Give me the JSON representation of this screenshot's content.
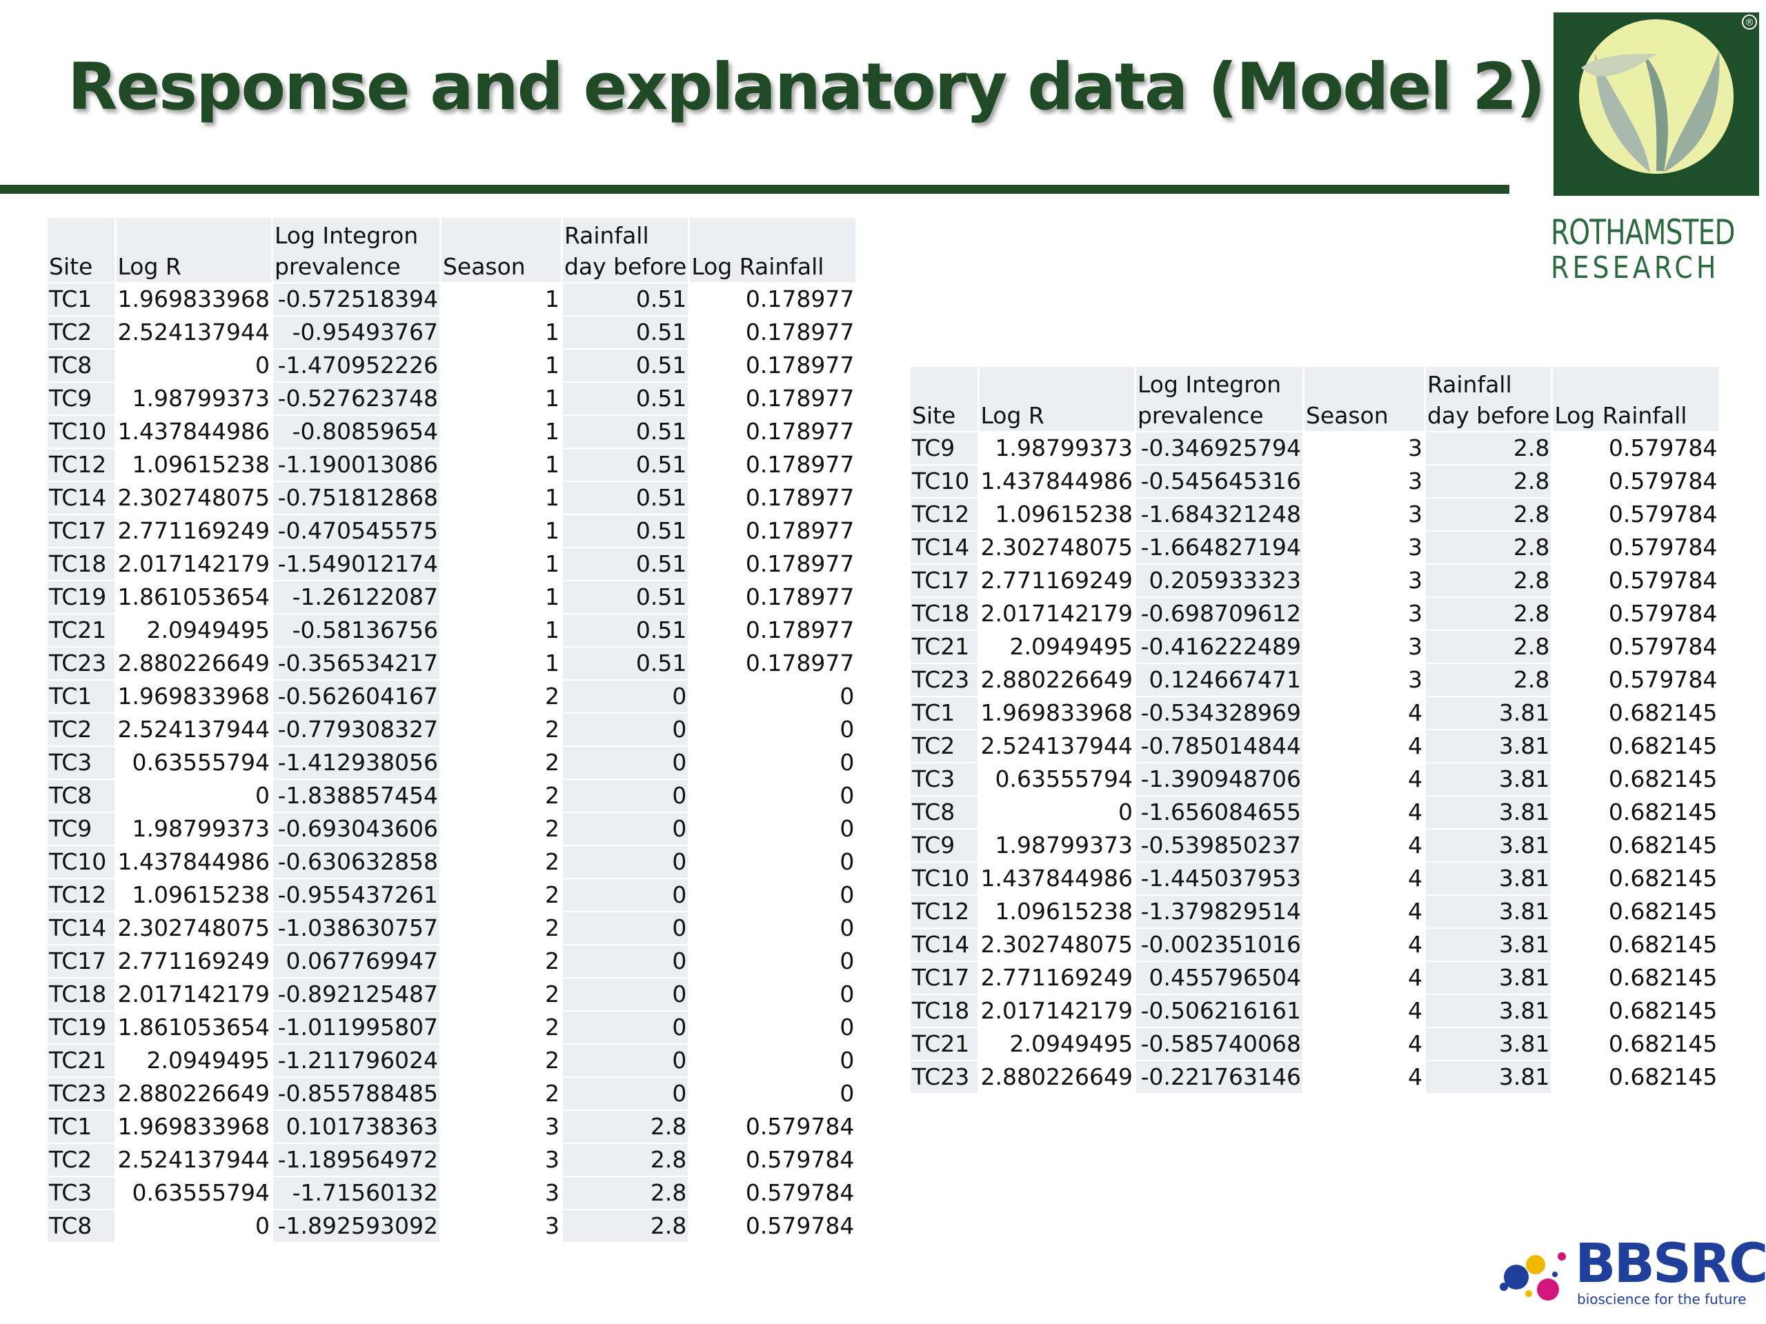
{
  "slide": {
    "title": "Response and explanatory data (Model 2)"
  },
  "logos": {
    "rothamsted": {
      "line1": "ROTHAMSTED",
      "line2": "RESEARCH",
      "registered": "®"
    },
    "bbsrc": {
      "name": "BBSRC",
      "tagline": "bioscience for the future"
    }
  },
  "colors": {
    "title": "#1f4a25",
    "rule": "#1f4a25",
    "header_fill": "#eceef2",
    "rothamsted_green": "#1f4f2a",
    "rothamsted_cream": "#ecefa8",
    "bbsrc_blue": "#1f3f9a"
  },
  "columns": {
    "site": "Site",
    "log_r": "Log R",
    "log_integron_l1": "Log Integron",
    "log_integron_l2": "prevalence",
    "season": "Season",
    "rainfall_l1": "Rainfall",
    "rainfall_l2": "day before",
    "log_rainfall": "Log Rainfall"
  },
  "table_left": {
    "rows": [
      [
        "TC1",
        "1.969833968",
        "-0.572518394",
        "1",
        "0.51",
        "0.178977"
      ],
      [
        "TC2",
        "2.524137944",
        "-0.95493767",
        "1",
        "0.51",
        "0.178977"
      ],
      [
        "TC8",
        "0",
        "-1.470952226",
        "1",
        "0.51",
        "0.178977"
      ],
      [
        "TC9",
        "1.98799373",
        "-0.527623748",
        "1",
        "0.51",
        "0.178977"
      ],
      [
        "TC10",
        "1.437844986",
        "-0.80859654",
        "1",
        "0.51",
        "0.178977"
      ],
      [
        "TC12",
        "1.09615238",
        "-1.190013086",
        "1",
        "0.51",
        "0.178977"
      ],
      [
        "TC14",
        "2.302748075",
        "-0.751812868",
        "1",
        "0.51",
        "0.178977"
      ],
      [
        "TC17",
        "2.771169249",
        "-0.470545575",
        "1",
        "0.51",
        "0.178977"
      ],
      [
        "TC18",
        "2.017142179",
        "-1.549012174",
        "1",
        "0.51",
        "0.178977"
      ],
      [
        "TC19",
        "1.861053654",
        "-1.26122087",
        "1",
        "0.51",
        "0.178977"
      ],
      [
        "TC21",
        "2.0949495",
        "-0.58136756",
        "1",
        "0.51",
        "0.178977"
      ],
      [
        "TC23",
        "2.880226649",
        "-0.356534217",
        "1",
        "0.51",
        "0.178977"
      ],
      [
        "TC1",
        "1.969833968",
        "-0.562604167",
        "2",
        "0",
        "0"
      ],
      [
        "TC2",
        "2.524137944",
        "-0.779308327",
        "2",
        "0",
        "0"
      ],
      [
        "TC3",
        "0.63555794",
        "-1.412938056",
        "2",
        "0",
        "0"
      ],
      [
        "TC8",
        "0",
        "-1.838857454",
        "2",
        "0",
        "0"
      ],
      [
        "TC9",
        "1.98799373",
        "-0.693043606",
        "2",
        "0",
        "0"
      ],
      [
        "TC10",
        "1.437844986",
        "-0.630632858",
        "2",
        "0",
        "0"
      ],
      [
        "TC12",
        "1.09615238",
        "-0.955437261",
        "2",
        "0",
        "0"
      ],
      [
        "TC14",
        "2.302748075",
        "-1.038630757",
        "2",
        "0",
        "0"
      ],
      [
        "TC17",
        "2.771169249",
        "0.067769947",
        "2",
        "0",
        "0"
      ],
      [
        "TC18",
        "2.017142179",
        "-0.892125487",
        "2",
        "0",
        "0"
      ],
      [
        "TC19",
        "1.861053654",
        "-1.011995807",
        "2",
        "0",
        "0"
      ],
      [
        "TC21",
        "2.0949495",
        "-1.211796024",
        "2",
        "0",
        "0"
      ],
      [
        "TC23",
        "2.880226649",
        "-0.855788485",
        "2",
        "0",
        "0"
      ],
      [
        "TC1",
        "1.969833968",
        "0.101738363",
        "3",
        "2.8",
        "0.579784"
      ],
      [
        "TC2",
        "2.524137944",
        "-1.189564972",
        "3",
        "2.8",
        "0.579784"
      ],
      [
        "TC3",
        "0.63555794",
        "-1.71560132",
        "3",
        "2.8",
        "0.579784"
      ],
      [
        "TC8",
        "0",
        "-1.892593092",
        "3",
        "2.8",
        "0.579784"
      ]
    ]
  },
  "table_right": {
    "rows": [
      [
        "TC9",
        "1.98799373",
        "-0.346925794",
        "3",
        "2.8",
        "0.579784"
      ],
      [
        "TC10",
        "1.437844986",
        "-0.545645316",
        "3",
        "2.8",
        "0.579784"
      ],
      [
        "TC12",
        "1.09615238",
        "-1.684321248",
        "3",
        "2.8",
        "0.579784"
      ],
      [
        "TC14",
        "2.302748075",
        "-1.664827194",
        "3",
        "2.8",
        "0.579784"
      ],
      [
        "TC17",
        "2.771169249",
        "0.205933323",
        "3",
        "2.8",
        "0.579784"
      ],
      [
        "TC18",
        "2.017142179",
        "-0.698709612",
        "3",
        "2.8",
        "0.579784"
      ],
      [
        "TC21",
        "2.0949495",
        "-0.416222489",
        "3",
        "2.8",
        "0.579784"
      ],
      [
        "TC23",
        "2.880226649",
        "0.124667471",
        "3",
        "2.8",
        "0.579784"
      ],
      [
        "TC1",
        "1.969833968",
        "-0.534328969",
        "4",
        "3.81",
        "0.682145"
      ],
      [
        "TC2",
        "2.524137944",
        "-0.785014844",
        "4",
        "3.81",
        "0.682145"
      ],
      [
        "TC3",
        "0.63555794",
        "-1.390948706",
        "4",
        "3.81",
        "0.682145"
      ],
      [
        "TC8",
        "0",
        "-1.656084655",
        "4",
        "3.81",
        "0.682145"
      ],
      [
        "TC9",
        "1.98799373",
        "-0.539850237",
        "4",
        "3.81",
        "0.682145"
      ],
      [
        "TC10",
        "1.437844986",
        "-1.445037953",
        "4",
        "3.81",
        "0.682145"
      ],
      [
        "TC12",
        "1.09615238",
        "-1.379829514",
        "4",
        "3.81",
        "0.682145"
      ],
      [
        "TC14",
        "2.302748075",
        "-0.002351016",
        "4",
        "3.81",
        "0.682145"
      ],
      [
        "TC17",
        "2.771169249",
        "0.455796504",
        "4",
        "3.81",
        "0.682145"
      ],
      [
        "TC18",
        "2.017142179",
        "-0.506216161",
        "4",
        "3.81",
        "0.682145"
      ],
      [
        "TC21",
        "2.0949495",
        "-0.585740068",
        "4",
        "3.81",
        "0.682145"
      ],
      [
        "TC23",
        "2.880226649",
        "-0.221763146",
        "4",
        "3.81",
        "0.682145"
      ]
    ]
  }
}
